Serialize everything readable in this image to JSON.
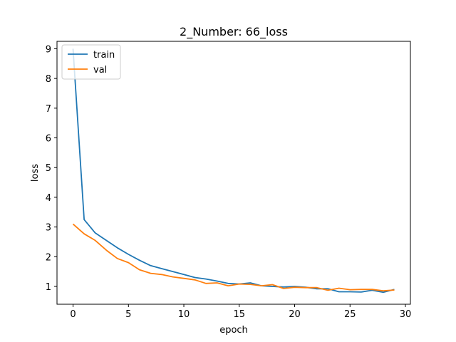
{
  "chart_data": {
    "type": "line",
    "title": "2_Number: 66_loss",
    "xlabel": "epoch",
    "ylabel": "loss",
    "xlim": [
      -1.45,
      30.45
    ],
    "ylim": [
      0.4,
      9.25
    ],
    "xticks": [
      0,
      5,
      10,
      15,
      20,
      25,
      30
    ],
    "yticks": [
      1,
      2,
      3,
      4,
      5,
      6,
      7,
      8,
      9
    ],
    "grid": false,
    "legend_position": "upper-left",
    "x": [
      0,
      1,
      2,
      3,
      4,
      5,
      6,
      7,
      8,
      9,
      10,
      11,
      12,
      13,
      14,
      15,
      16,
      17,
      18,
      19,
      20,
      21,
      22,
      23,
      24,
      25,
      26,
      27,
      28,
      29
    ],
    "series": [
      {
        "name": "train",
        "color": "#1f77b4",
        "values": [
          9.0,
          3.25,
          2.8,
          2.55,
          2.3,
          2.08,
          1.88,
          1.7,
          1.6,
          1.5,
          1.4,
          1.3,
          1.25,
          1.18,
          1.1,
          1.08,
          1.12,
          1.02,
          1.0,
          0.98,
          1.0,
          0.97,
          0.92,
          0.92,
          0.82,
          0.82,
          0.81,
          0.87,
          0.8,
          0.9
        ]
      },
      {
        "name": "val",
        "color": "#ff7f0e",
        "values": [
          3.1,
          2.77,
          2.55,
          2.22,
          1.94,
          1.8,
          1.56,
          1.44,
          1.4,
          1.32,
          1.27,
          1.22,
          1.1,
          1.12,
          1.02,
          1.08,
          1.07,
          1.02,
          1.06,
          0.93,
          0.97,
          0.96,
          0.96,
          0.87,
          0.94,
          0.89,
          0.9,
          0.9,
          0.85,
          0.88
        ]
      }
    ]
  }
}
